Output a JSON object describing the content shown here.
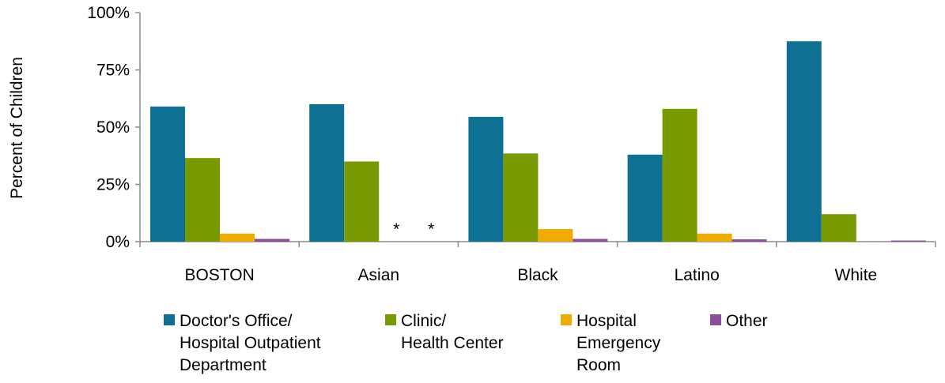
{
  "chart_data": {
    "type": "bar",
    "title": "",
    "xlabel": "",
    "ylabel": "Percent of Children",
    "ylim": [
      0,
      100
    ],
    "yticks": [
      {
        "value": 0,
        "label": "0%"
      },
      {
        "value": 25,
        "label": "25%"
      },
      {
        "value": 50,
        "label": "50%"
      },
      {
        "value": 75,
        "label": "75%"
      },
      {
        "value": 100,
        "label": "100%"
      }
    ],
    "categories": [
      "BOSTON",
      "Asian",
      "Black",
      "Latino",
      "White"
    ],
    "series": [
      {
        "name": "Doctor's Office/ Hospital Outpatient Department",
        "legend_lines": [
          "Doctor's Office/",
          "Hospital Outpatient",
          "Department"
        ],
        "color": "#0e7092",
        "values": [
          59,
          60,
          54.5,
          38,
          87.5
        ]
      },
      {
        "name": "Clinic/ Health Center",
        "legend_lines": [
          "Clinic/",
          "Health Center"
        ],
        "color": "#779a00",
        "values": [
          36.5,
          35,
          38.5,
          58,
          12
        ]
      },
      {
        "name": "Hospital Emergency Room",
        "legend_lines": [
          "Hospital",
          "Emergency",
          "Room"
        ],
        "color": "#f0ab00",
        "values": [
          3.5,
          null,
          5.5,
          3.5,
          0
        ]
      },
      {
        "name": "Other",
        "legend_lines": [
          "Other"
        ],
        "color": "#8b4e9b",
        "values": [
          1.2,
          null,
          1.2,
          1.0,
          0.5
        ]
      }
    ],
    "annotations": [
      {
        "category": "Asian",
        "series": "Hospital Emergency Room",
        "text": "*"
      },
      {
        "category": "Asian",
        "series": "Other",
        "text": "*"
      }
    ],
    "grid": false,
    "legend_position": "bottom"
  }
}
